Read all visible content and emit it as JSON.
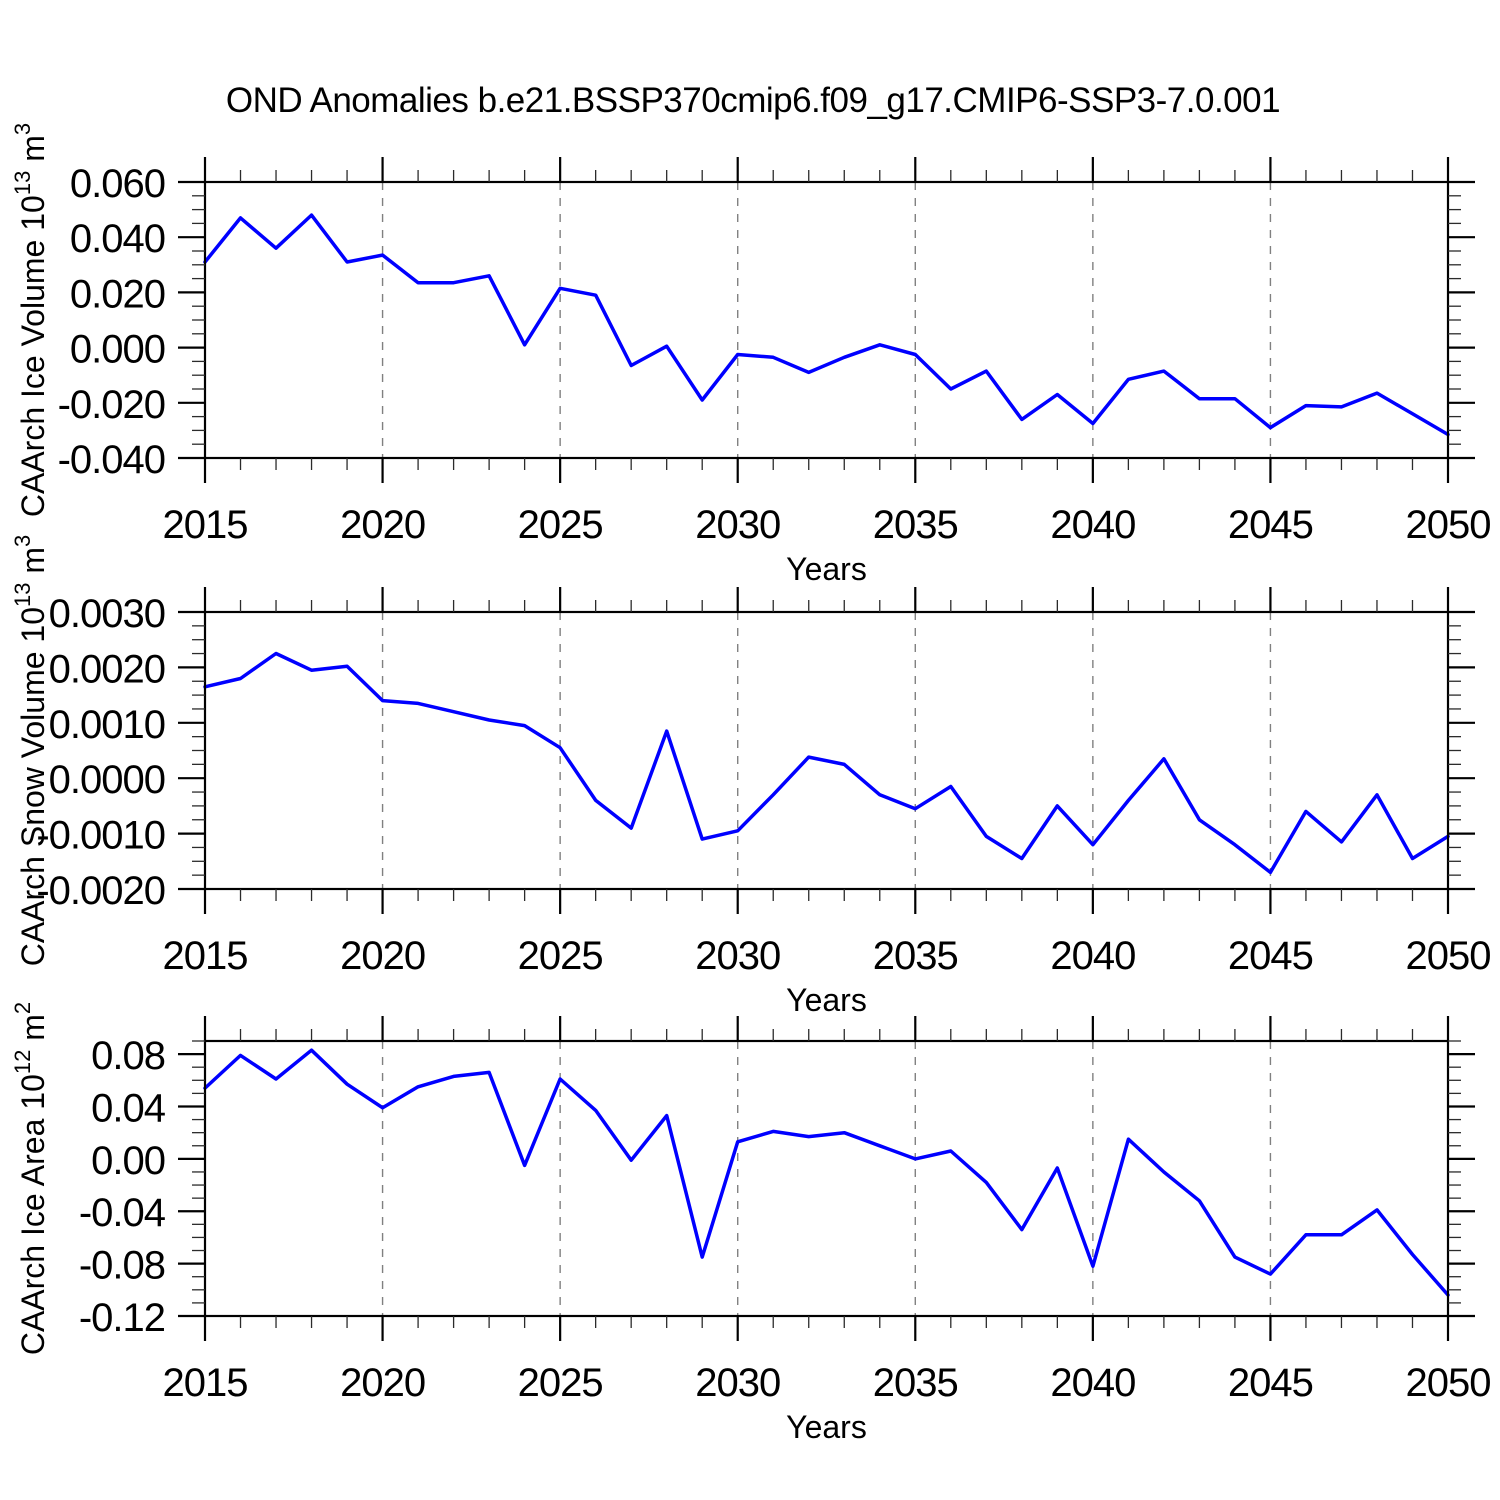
{
  "title": "OND Anomalies b.e21.BSSP370cmip6.f09_g17.CMIP6-SSP3-7.0.001",
  "colors": {
    "line": "#0000ff",
    "grid": "#808080",
    "frame": "#000000",
    "background": "#ffffff"
  },
  "chart_data": [
    {
      "type": "line",
      "name": "caarch-ice-volume",
      "ylabel": "CAArch Ice Volume 10^13 m^3",
      "ylabel_parts": [
        {
          "text": "CAArch Ice Volume 10"
        },
        {
          "text": "13",
          "sup": true
        },
        {
          "text": " m"
        },
        {
          "text": "3",
          "sup": true
        }
      ],
      "xlabel": "Years",
      "x": [
        2015,
        2016,
        2017,
        2018,
        2019,
        2020,
        2021,
        2022,
        2023,
        2024,
        2025,
        2026,
        2027,
        2028,
        2029,
        2030,
        2031,
        2032,
        2033,
        2034,
        2035,
        2036,
        2037,
        2038,
        2039,
        2040,
        2041,
        2042,
        2043,
        2044,
        2045,
        2046,
        2047,
        2048,
        2049,
        2050
      ],
      "values": [
        0.031,
        0.047,
        0.036,
        0.048,
        0.031,
        0.0335,
        0.0235,
        0.0235,
        0.026,
        0.001,
        0.0215,
        0.019,
        -0.0065,
        0.0005,
        -0.019,
        -0.0025,
        -0.0035,
        -0.009,
        -0.0035,
        0.001,
        -0.0025,
        -0.015,
        -0.0085,
        -0.026,
        -0.017,
        -0.0275,
        -0.0115,
        -0.0085,
        -0.0185,
        -0.0185,
        -0.029,
        -0.021,
        -0.0215,
        -0.0165,
        -0.024,
        -0.0315
      ],
      "xlim": [
        2015,
        2050
      ],
      "ylim": [
        -0.04,
        0.06
      ],
      "xtick_major": 5,
      "xtick_minor": 1,
      "ytick_major": 0.02,
      "ytick_minor": 0.005,
      "ytick_decimals": 3,
      "xtick_labels": [
        "2015",
        "2020",
        "2025",
        "2030",
        "2035",
        "2040",
        "2045",
        "2050"
      ],
      "ytick_labels": [
        "-0.040",
        "-0.020",
        "0.000",
        "0.020",
        "0.040",
        "0.060"
      ],
      "grid_x": [
        2020,
        2025,
        2030,
        2035,
        2040,
        2045
      ],
      "grid_on": "x-dashed"
    },
    {
      "type": "line",
      "name": "caarch-snow-volume",
      "ylabel": "CAArch Snow Volume 10^13 m^3",
      "ylabel_parts": [
        {
          "text": "CAArch Snow Volume 10"
        },
        {
          "text": "13",
          "sup": true
        },
        {
          "text": " m"
        },
        {
          "text": "3",
          "sup": true
        }
      ],
      "xlabel": "Years",
      "x": [
        2015,
        2016,
        2017,
        2018,
        2019,
        2020,
        2021,
        2022,
        2023,
        2024,
        2025,
        2026,
        2027,
        2028,
        2029,
        2030,
        2031,
        2032,
        2033,
        2034,
        2035,
        2036,
        2037,
        2038,
        2039,
        2040,
        2041,
        2042,
        2043,
        2044,
        2045,
        2046,
        2047,
        2048,
        2049,
        2050
      ],
      "values": [
        0.00165,
        0.0018,
        0.00225,
        0.00195,
        0.00202,
        0.0014,
        0.00135,
        0.0012,
        0.00105,
        0.00095,
        0.00055,
        -0.0004,
        -0.0009,
        0.00085,
        -0.0011,
        -0.00095,
        -0.0003,
        0.00038,
        0.00025,
        -0.0003,
        -0.00055,
        -0.00015,
        -0.00105,
        -0.00145,
        -0.0005,
        -0.0012,
        -0.0004,
        0.00035,
        -0.00075,
        -0.0012,
        -0.0017,
        -0.0006,
        -0.00115,
        -0.0003,
        -0.00145,
        -0.00105
      ],
      "xlim": [
        2015,
        2050
      ],
      "ylim": [
        -0.002,
        0.003
      ],
      "xtick_major": 5,
      "xtick_minor": 1,
      "ytick_major": 0.001,
      "ytick_minor": 0.00025,
      "ytick_decimals": 4,
      "xtick_labels": [
        "2015",
        "2020",
        "2025",
        "2030",
        "2035",
        "2040",
        "2045",
        "2050"
      ],
      "ytick_labels": [
        "-0.0020",
        "-0.0010",
        "0.0000",
        "0.0010",
        "0.0020",
        "0.0030"
      ],
      "grid_x": [
        2020,
        2025,
        2030,
        2035,
        2040,
        2045
      ],
      "grid_on": "x-dashed"
    },
    {
      "type": "line",
      "name": "caarch-ice-area",
      "ylabel": "CAArch Ice Area 10^12 m^2",
      "ylabel_parts": [
        {
          "text": "CAArch Ice Area 10"
        },
        {
          "text": "12",
          "sup": true
        },
        {
          "text": " m"
        },
        {
          "text": "2",
          "sup": true
        }
      ],
      "xlabel": "Years",
      "x": [
        2015,
        2016,
        2017,
        2018,
        2019,
        2020,
        2021,
        2022,
        2023,
        2024,
        2025,
        2026,
        2027,
        2028,
        2029,
        2030,
        2031,
        2032,
        2033,
        2034,
        2035,
        2036,
        2037,
        2038,
        2039,
        2040,
        2041,
        2042,
        2043,
        2044,
        2045,
        2046,
        2047,
        2048,
        2049,
        2050
      ],
      "values": [
        0.054,
        0.079,
        0.061,
        0.083,
        0.057,
        0.039,
        0.055,
        0.063,
        0.066,
        -0.005,
        0.061,
        0.037,
        -0.001,
        0.033,
        -0.075,
        0.013,
        0.021,
        0.017,
        0.02,
        0.01,
        0.0,
        0.006,
        -0.018,
        -0.054,
        -0.007,
        -0.082,
        0.015,
        -0.01,
        -0.032,
        -0.075,
        -0.088,
        -0.058,
        -0.058,
        -0.039,
        -0.073,
        -0.104
      ],
      "xlim": [
        2015,
        2050
      ],
      "ylim": [
        -0.12,
        0.09
      ],
      "xtick_major": 5,
      "xtick_minor": 1,
      "ytick_major": 0.04,
      "ytick_minor": 0.01,
      "ytick_decimals": 2,
      "xtick_labels": [
        "2015",
        "2020",
        "2025",
        "2030",
        "2035",
        "2040",
        "2045",
        "2050"
      ],
      "ytick_labels": [
        "-0.12",
        "-0.08",
        "-0.04",
        "0.00",
        "0.04",
        "0.08"
      ],
      "grid_x": [
        2020,
        2025,
        2030,
        2035,
        2040,
        2045
      ],
      "grid_on": "x-dashed"
    }
  ]
}
